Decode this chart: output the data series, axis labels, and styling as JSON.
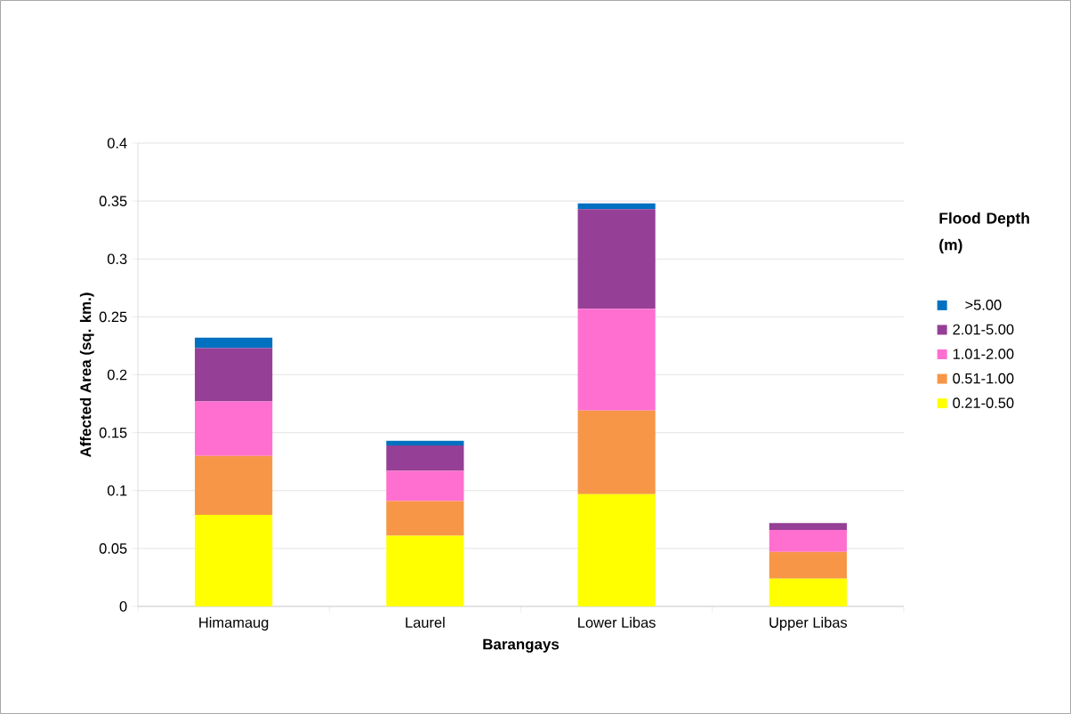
{
  "chart_data": {
    "type": "bar",
    "stacked": true,
    "xlabel": "Barangays",
    "ylabel": "Affected Area (sq. km.)",
    "legend_title": "Flood Depth (m)",
    "legend": "right",
    "grid": "y",
    "categories": [
      "Himamaug",
      "Laurel",
      "Lower Libas",
      "Upper Libas"
    ],
    "ylim": [
      0,
      0.4
    ],
    "yticks": [
      0,
      0.05,
      0.1,
      0.15,
      0.2,
      0.25,
      0.3,
      0.35,
      0.4
    ],
    "series": [
      {
        "name": "0.21-0.50",
        "color": "#ffff00",
        "values": [
          0.079,
          0.061,
          0.097,
          0.024
        ]
      },
      {
        "name": "0.51-1.00",
        "color": "#f79646",
        "values": [
          0.051,
          0.03,
          0.072,
          0.023
        ]
      },
      {
        "name": "1.01-2.00",
        "color": "#ff6fcf",
        "values": [
          0.047,
          0.026,
          0.088,
          0.019
        ]
      },
      {
        "name": "2.01-5.00",
        "color": "#953f96",
        "values": [
          0.046,
          0.022,
          0.086,
          0.006
        ]
      },
      {
        "name": ">5.00",
        "color": "#0070c0",
        "values": [
          0.009,
          0.004,
          0.005,
          0
        ]
      }
    ]
  }
}
